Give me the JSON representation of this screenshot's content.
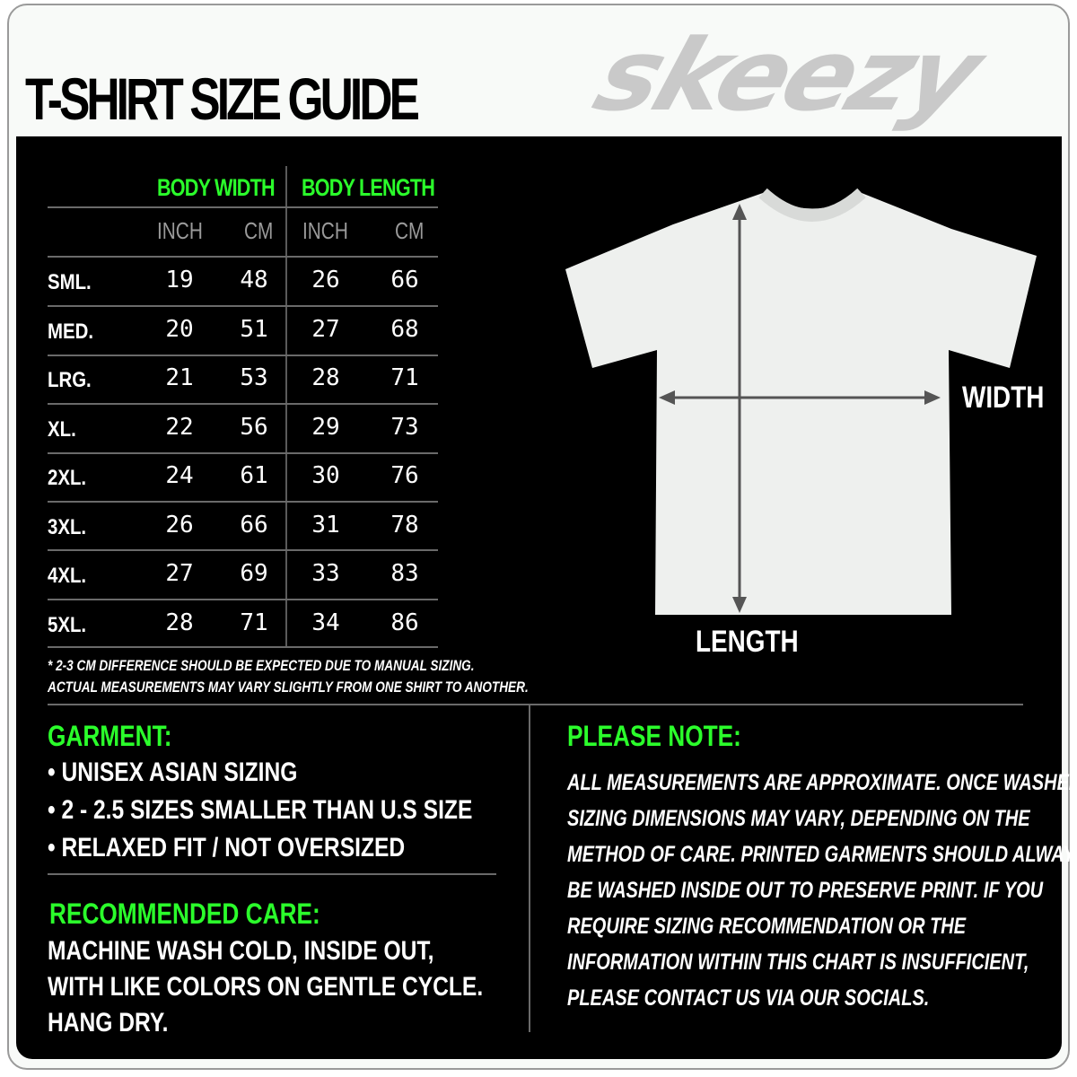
{
  "title": "T-SHIRT SIZE GUIDE",
  "brand": "skeezy",
  "table": {
    "groups": [
      "BODY WIDTH",
      "BODY LENGTH"
    ],
    "units": [
      "INCH",
      "CM",
      "INCH",
      "CM"
    ],
    "rows": [
      {
        "size": "SML.",
        "values": [
          "19",
          "48",
          "26",
          "66"
        ]
      },
      {
        "size": "MED.",
        "values": [
          "20",
          "51",
          "27",
          "68"
        ]
      },
      {
        "size": "LRG.",
        "values": [
          "21",
          "53",
          "28",
          "71"
        ]
      },
      {
        "size": "XL.",
        "values": [
          "22",
          "56",
          "29",
          "73"
        ]
      },
      {
        "size": "2XL.",
        "values": [
          "24",
          "61",
          "30",
          "76"
        ]
      },
      {
        "size": "3XL.",
        "values": [
          "26",
          "66",
          "31",
          "78"
        ]
      },
      {
        "size": "4XL.",
        "values": [
          "27",
          "69",
          "33",
          "83"
        ]
      },
      {
        "size": "5XL.",
        "values": [
          "28",
          "71",
          "34",
          "86"
        ]
      }
    ],
    "footnote_1": "* 2-3 CM DIFFERENCE SHOULD BE EXPECTED DUE TO MANUAL SIZING.",
    "footnote_2": "ACTUAL MEASUREMENTS MAY VARY SLIGHTLY FROM ONE SHIRT TO ANOTHER."
  },
  "diagram": {
    "width_label": "WIDTH",
    "length_label": "LENGTH"
  },
  "garment": {
    "heading": "GARMENT:",
    "items": [
      "UNISEX ASIAN SIZING",
      "2 - 2.5 SIZES SMALLER THAN U.S SIZE",
      "RELAXED FIT / NOT OVERSIZED"
    ]
  },
  "care": {
    "heading": "RECOMMENDED CARE:",
    "lines": [
      "MACHINE WASH COLD, INSIDE OUT,",
      "WITH LIKE COLORS ON GENTLE CYCLE.",
      "HANG DRY."
    ]
  },
  "please_note": {
    "heading": "PLEASE NOTE:",
    "lines": [
      "ALL MEASUREMENTS ARE APPROXIMATE. ONCE  WASHED,",
      "SIZING DIMENSIONS MAY VARY, DEPENDING ON THE",
      "METHOD OF CARE. PRINTED GARMENTS SHOULD ALWAYS",
      "BE WASHED INSIDE OUT TO PRESERVE PRINT.  IF YOU",
      "REQUIRE SIZING  RECOMMENDATION OR THE",
      "INFORMATION WITHIN THIS CHART IS INSUFFICIENT,",
      "PLEASE CONTACT US VIA OUR SOCIALS."
    ]
  },
  "colors": {
    "accent": "#2bff2b",
    "panel": "#000000",
    "logo": "#c9c9c9"
  }
}
